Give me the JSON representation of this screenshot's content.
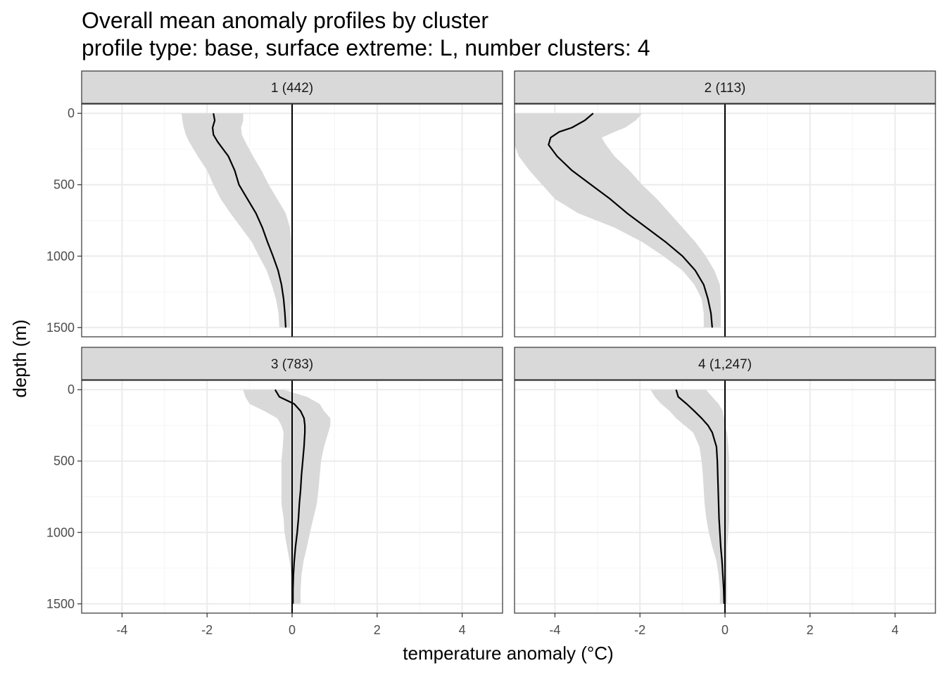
{
  "chart_data": {
    "type": "line",
    "title": "Overall mean anomaly profiles by cluster",
    "subtitle": "profile type: base, surface extreme: L, number clusters: 4",
    "xlabel": "temperature anomaly (°C)",
    "ylabel": "depth (m)",
    "xlim": [
      -4.95,
      4.95
    ],
    "ylim": [
      1565,
      -65
    ],
    "y_reversed": true,
    "x_ticks": [
      -4,
      -2,
      0,
      2,
      4
    ],
    "y_ticks": [
      0,
      500,
      1000,
      1500
    ],
    "grid": true,
    "reference_line_x": 0,
    "colors": {
      "line": "#000000",
      "ribbon": "#d9d9d9",
      "strip_fill": "#d9d9d9",
      "grid_major": "#ebebeb",
      "grid_minor": "#f4f4f4",
      "panel_border": "#333333"
    },
    "panels": [
      {
        "strip": "1 (442)",
        "depth": [
          0,
          50,
          100,
          150,
          200,
          300,
          400,
          500,
          600,
          700,
          800,
          900,
          1000,
          1100,
          1200,
          1300,
          1400,
          1500
        ],
        "mean": [
          -1.85,
          -1.82,
          -1.87,
          -1.85,
          -1.75,
          -1.5,
          -1.35,
          -1.25,
          -1.05,
          -0.85,
          -0.7,
          -0.58,
          -0.45,
          -0.33,
          -0.25,
          -0.2,
          -0.17,
          -0.15
        ],
        "lower": [
          -2.6,
          -2.58,
          -2.55,
          -2.5,
          -2.42,
          -2.22,
          -2.0,
          -1.85,
          -1.68,
          -1.45,
          -1.2,
          -0.95,
          -0.78,
          -0.6,
          -0.48,
          -0.38,
          -0.32,
          -0.3
        ],
        "upper": [
          -1.15,
          -1.15,
          -1.2,
          -1.18,
          -1.1,
          -0.92,
          -0.72,
          -0.55,
          -0.35,
          -0.15,
          -0.05,
          -0.02,
          -0.02,
          -0.02,
          -0.02,
          -0.02,
          -0.05,
          -0.05
        ]
      },
      {
        "strip": "2 (113)",
        "depth": [
          0,
          50,
          100,
          130,
          170,
          220,
          300,
          400,
          500,
          600,
          700,
          800,
          900,
          1000,
          1100,
          1200,
          1300,
          1400,
          1500
        ],
        "mean": [
          -3.1,
          -3.3,
          -3.6,
          -3.9,
          -4.1,
          -4.15,
          -3.95,
          -3.6,
          -3.15,
          -2.7,
          -2.3,
          -1.85,
          -1.4,
          -1.0,
          -0.7,
          -0.5,
          -0.4,
          -0.33,
          -0.3
        ],
        "lower": [
          -4.95,
          -4.95,
          -4.95,
          -4.95,
          -4.95,
          -4.95,
          -4.85,
          -4.6,
          -4.3,
          -4.0,
          -3.45,
          -2.6,
          -1.95,
          -1.45,
          -1.0,
          -0.72,
          -0.55,
          -0.5,
          -0.5
        ],
        "upper": [
          -1.95,
          -2.1,
          -2.35,
          -2.6,
          -2.9,
          -2.8,
          -2.6,
          -2.25,
          -1.95,
          -1.6,
          -1.3,
          -1.0,
          -0.7,
          -0.45,
          -0.25,
          -0.12,
          -0.1,
          -0.1,
          -0.1
        ]
      },
      {
        "strip": "3 (783)",
        "depth": [
          0,
          50,
          100,
          150,
          200,
          250,
          300,
          400,
          500,
          600,
          700,
          800,
          900,
          1000,
          1100,
          1200,
          1300,
          1400,
          1500
        ],
        "mean": [
          -0.4,
          -0.3,
          0.05,
          0.2,
          0.28,
          0.3,
          0.3,
          0.28,
          0.25,
          0.22,
          0.2,
          0.17,
          0.15,
          0.12,
          0.08,
          0.05,
          0.03,
          0.02,
          0.02
        ],
        "lower": [
          -1.15,
          -1.1,
          -1.0,
          -0.65,
          -0.35,
          -0.25,
          -0.2,
          -0.22,
          -0.25,
          -0.25,
          -0.25,
          -0.25,
          -0.2,
          -0.18,
          -0.12,
          -0.06,
          -0.02,
          0.0,
          0.0
        ],
        "upper": [
          -0.2,
          0.35,
          0.65,
          0.75,
          0.9,
          0.9,
          0.85,
          0.75,
          0.68,
          0.65,
          0.62,
          0.58,
          0.5,
          0.42,
          0.35,
          0.27,
          0.22,
          0.2,
          0.2
        ]
      },
      {
        "strip": "4 (1,247)",
        "depth": [
          0,
          50,
          100,
          150,
          200,
          250,
          300,
          400,
          500,
          600,
          700,
          800,
          900,
          1000,
          1100,
          1200,
          1300,
          1400,
          1500
        ],
        "mean": [
          -1.15,
          -1.1,
          -0.9,
          -0.72,
          -0.55,
          -0.4,
          -0.3,
          -0.2,
          -0.18,
          -0.17,
          -0.16,
          -0.15,
          -0.14,
          -0.12,
          -0.1,
          -0.07,
          -0.05,
          -0.03,
          -0.02
        ],
        "lower": [
          -1.75,
          -1.65,
          -1.5,
          -1.3,
          -1.15,
          -0.95,
          -0.75,
          -0.6,
          -0.55,
          -0.52,
          -0.5,
          -0.48,
          -0.44,
          -0.38,
          -0.3,
          -0.2,
          -0.15,
          -0.12,
          -0.12
        ],
        "upper": [
          -0.45,
          -0.3,
          -0.15,
          -0.05,
          -0.02,
          0.0,
          0.05,
          0.08,
          0.1,
          0.1,
          0.1,
          0.1,
          0.1,
          0.08,
          0.05,
          0.05,
          0.05,
          0.05,
          0.05
        ]
      }
    ]
  }
}
